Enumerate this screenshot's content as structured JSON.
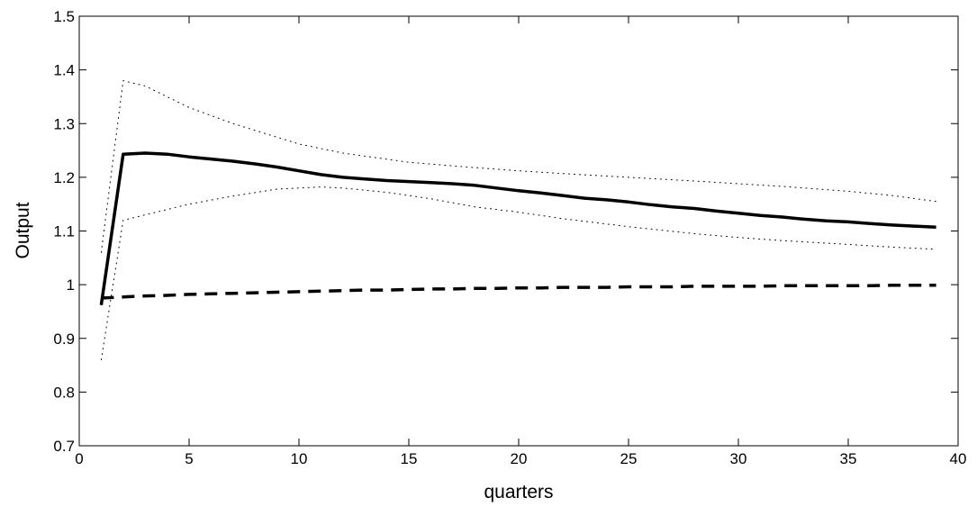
{
  "chart_data": {
    "type": "line",
    "title": "",
    "xlabel": "quarters",
    "ylabel": "Output",
    "xlim": [
      0,
      40
    ],
    "ylim": [
      0.7,
      1.5
    ],
    "xticks": [
      0,
      5,
      10,
      15,
      20,
      25,
      30,
      35,
      40
    ],
    "xtick_labels": [
      "0",
      "5",
      "10",
      "15",
      "20",
      "25",
      "30",
      "35",
      "40"
    ],
    "yticks": [
      0.7,
      0.8,
      0.9,
      1.0,
      1.1,
      1.2,
      1.3,
      1.4,
      1.5
    ],
    "ytick_labels": [
      "0.7",
      "0.8",
      "0.9",
      "1",
      "1.1",
      "1.2",
      "1.3",
      "1.4",
      "1.5"
    ],
    "grid": false,
    "legend": "none",
    "colors": {
      "line": "#000000",
      "frame": "#000000",
      "background": "#ffffff"
    },
    "series": [
      {
        "style": "solid",
        "x": [
          1,
          2,
          3,
          4,
          5,
          6,
          7,
          8,
          9,
          10,
          11,
          12,
          13,
          14,
          15,
          16,
          17,
          18,
          19,
          20,
          21,
          22,
          23,
          24,
          25,
          26,
          27,
          28,
          29,
          30,
          31,
          32,
          33,
          34,
          35,
          36,
          37,
          38,
          39
        ],
        "values": [
          0.962,
          1.243,
          1.245,
          1.243,
          1.238,
          1.234,
          1.23,
          1.225,
          1.219,
          1.212,
          1.205,
          1.2,
          1.197,
          1.194,
          1.192,
          1.19,
          1.188,
          1.185,
          1.18,
          1.175,
          1.171,
          1.166,
          1.161,
          1.158,
          1.154,
          1.149,
          1.145,
          1.142,
          1.137,
          1.133,
          1.129,
          1.126,
          1.122,
          1.119,
          1.117,
          1.114,
          1.111,
          1.109,
          1.107
        ]
      },
      {
        "style": "dashed",
        "x": [
          1,
          2,
          3,
          4,
          5,
          6,
          7,
          8,
          9,
          10,
          11,
          12,
          13,
          14,
          15,
          16,
          17,
          18,
          19,
          20,
          21,
          22,
          23,
          24,
          25,
          26,
          27,
          28,
          29,
          30,
          31,
          32,
          33,
          34,
          35,
          36,
          37,
          38,
          39
        ],
        "values": [
          0.975,
          0.977,
          0.979,
          0.98,
          0.982,
          0.983,
          0.984,
          0.985,
          0.986,
          0.987,
          0.988,
          0.989,
          0.99,
          0.99,
          0.991,
          0.992,
          0.992,
          0.993,
          0.993,
          0.994,
          0.994,
          0.995,
          0.995,
          0.995,
          0.996,
          0.996,
          0.996,
          0.997,
          0.997,
          0.997,
          0.997,
          0.998,
          0.998,
          0.998,
          0.998,
          0.998,
          0.999,
          0.999,
          0.999
        ]
      },
      {
        "style": "dotted",
        "x": [
          1,
          2,
          3,
          5,
          7,
          10,
          12,
          15,
          18,
          20,
          22,
          25,
          28,
          30,
          32,
          35,
          37,
          39
        ],
        "values": [
          1.06,
          1.38,
          1.37,
          1.33,
          1.3,
          1.262,
          1.245,
          1.228,
          1.218,
          1.212,
          1.207,
          1.2,
          1.193,
          1.188,
          1.183,
          1.174,
          1.166,
          1.155
        ]
      },
      {
        "style": "dotted",
        "x": [
          1,
          2,
          3,
          5,
          7,
          9,
          11,
          12,
          14,
          16,
          18,
          20,
          22,
          25,
          28,
          30,
          32,
          35,
          37,
          39
        ],
        "values": [
          0.86,
          1.12,
          1.13,
          1.15,
          1.165,
          1.178,
          1.182,
          1.18,
          1.172,
          1.16,
          1.145,
          1.135,
          1.123,
          1.108,
          1.095,
          1.088,
          1.082,
          1.075,
          1.07,
          1.066
        ]
      }
    ]
  }
}
